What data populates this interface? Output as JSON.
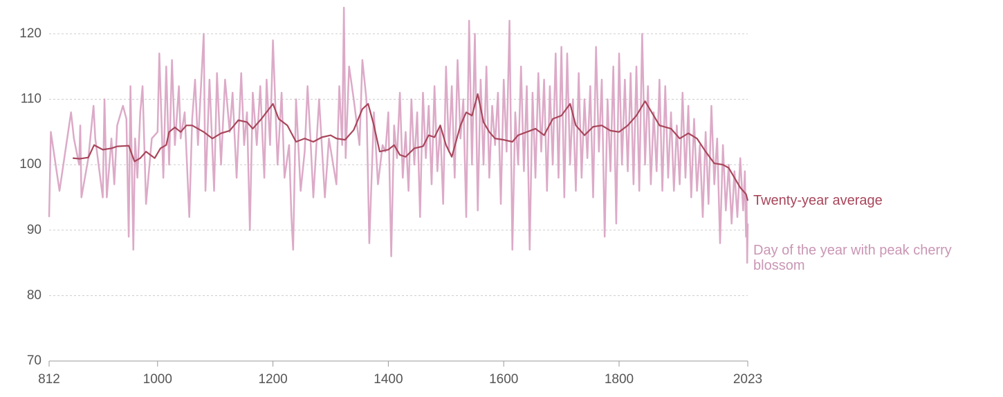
{
  "chart_data": {
    "type": "line",
    "xlim": [
      812,
      2023
    ],
    "xticks": [
      812,
      1000,
      1200,
      1400,
      1600,
      1800,
      2023
    ],
    "ylim": [
      70,
      124
    ],
    "yticks": [
      70,
      80,
      90,
      100,
      110,
      120
    ],
    "grid": true,
    "series": [
      {
        "name": "Day of the year with peak cherry blossom",
        "color": "#dcaac7",
        "x": [
          812,
          815,
          830,
          850,
          855,
          864,
          866,
          868,
          880,
          889,
          892,
          905,
          908,
          912,
          920,
          925,
          930,
          940,
          946,
          950,
          953,
          958,
          961,
          965,
          970,
          974,
          980,
          990,
          1000,
          1003,
          1010,
          1015,
          1020,
          1025,
          1030,
          1037,
          1040,
          1047,
          1055,
          1060,
          1065,
          1070,
          1080,
          1083,
          1090,
          1098,
          1103,
          1110,
          1117,
          1125,
          1130,
          1137,
          1145,
          1150,
          1155,
          1160,
          1165,
          1172,
          1178,
          1185,
          1189,
          1195,
          1200,
          1208,
          1215,
          1220,
          1228,
          1232,
          1235,
          1240,
          1248,
          1255,
          1260,
          1265,
          1270,
          1280,
          1290,
          1297,
          1310,
          1315,
          1320,
          1323,
          1326,
          1332,
          1340,
          1350,
          1355,
          1362,
          1367,
          1375,
          1382,
          1390,
          1395,
          1400,
          1405,
          1410,
          1415,
          1420,
          1425,
          1430,
          1435,
          1440,
          1445,
          1450,
          1455,
          1460,
          1465,
          1470,
          1475,
          1480,
          1485,
          1490,
          1495,
          1500,
          1505,
          1510,
          1515,
          1520,
          1525,
          1530,
          1535,
          1540,
          1545,
          1550,
          1555,
          1560,
          1565,
          1570,
          1575,
          1580,
          1585,
          1590,
          1595,
          1600,
          1605,
          1610,
          1615,
          1620,
          1625,
          1630,
          1635,
          1640,
          1645,
          1650,
          1655,
          1660,
          1665,
          1670,
          1675,
          1680,
          1685,
          1690,
          1695,
          1700,
          1705,
          1710,
          1715,
          1720,
          1725,
          1730,
          1735,
          1740,
          1745,
          1750,
          1755,
          1760,
          1765,
          1770,
          1775,
          1780,
          1785,
          1790,
          1795,
          1800,
          1805,
          1810,
          1815,
          1820,
          1825,
          1830,
          1835,
          1840,
          1845,
          1850,
          1855,
          1860,
          1865,
          1870,
          1875,
          1880,
          1885,
          1890,
          1895,
          1900,
          1905,
          1910,
          1915,
          1920,
          1925,
          1930,
          1935,
          1940,
          1945,
          1950,
          1955,
          1960,
          1965,
          1970,
          1975,
          1980,
          1985,
          1990,
          1995,
          2000,
          2005,
          2010,
          2015,
          2018,
          2020,
          2021,
          2022,
          2023
        ],
        "values": [
          92,
          105,
          96,
          108,
          104,
          100,
          106,
          95,
          101,
          109,
          104,
          95,
          110,
          95,
          104,
          97,
          106,
          109,
          107,
          89,
          112,
          87,
          104,
          98,
          108,
          112,
          94,
          104,
          105,
          117,
          98,
          115,
          100,
          116,
          103,
          112,
          104,
          108,
          92,
          107,
          113,
          103,
          120,
          96,
          113,
          96,
          114,
          100,
          113,
          105,
          111,
          98,
          114,
          103,
          108,
          90,
          111,
          103,
          112,
          98,
          113,
          103,
          119,
          100,
          111,
          98,
          103,
          92,
          87,
          110,
          96,
          102,
          112,
          104,
          95,
          110,
          95,
          104,
          97,
          112,
          103,
          124,
          101,
          115,
          110,
          103,
          116,
          110,
          88,
          108,
          97,
          103,
          102,
          108,
          86,
          106,
          101,
          111,
          98,
          105,
          96,
          110,
          100,
          108,
          92,
          111,
          101,
          109,
          97,
          112,
          99,
          106,
          94,
          115,
          102,
          112,
          98,
          116,
          104,
          110,
          92,
          122,
          100,
          120,
          93,
          113,
          100,
          115,
          98,
          109,
          103,
          111,
          94,
          113,
          102,
          122,
          87,
          108,
          100,
          115,
          99,
          112,
          87,
          111,
          98,
          114,
          102,
          113,
          96,
          112,
          100,
          117,
          98,
          118,
          95,
          117,
          100,
          110,
          96,
          114,
          98,
          110,
          101,
          112,
          95,
          118,
          102,
          113,
          89,
          110,
          99,
          115,
          91,
          117,
          100,
          113,
          99,
          114,
          97,
          115,
          96,
          120,
          100,
          112,
          97,
          108,
          99,
          113,
          96,
          112,
          98,
          108,
          96,
          106,
          97,
          111,
          98,
          109,
          95,
          107,
          96,
          103,
          92,
          105,
          94,
          109,
          97,
          104,
          88,
          103,
          93,
          100,
          91,
          99,
          92,
          101,
          93,
          99,
          89,
          95,
          85,
          91
        ]
      },
      {
        "name": "Twenty-year average",
        "color": "#a8455a",
        "x": [
          853,
          865,
          880,
          890,
          905,
          920,
          930,
          950,
          960,
          970,
          980,
          995,
          1005,
          1015,
          1020,
          1030,
          1040,
          1050,
          1060,
          1070,
          1080,
          1095,
          1110,
          1125,
          1140,
          1155,
          1165,
          1180,
          1200,
          1210,
          1225,
          1240,
          1255,
          1270,
          1285,
          1300,
          1310,
          1325,
          1340,
          1355,
          1365,
          1375,
          1385,
          1400,
          1410,
          1420,
          1430,
          1445,
          1460,
          1470,
          1480,
          1490,
          1500,
          1510,
          1525,
          1535,
          1545,
          1555,
          1565,
          1575,
          1585,
          1600,
          1615,
          1625,
          1640,
          1655,
          1670,
          1685,
          1700,
          1715,
          1725,
          1740,
          1755,
          1770,
          1785,
          1800,
          1815,
          1830,
          1845,
          1860,
          1870,
          1890,
          1905,
          1920,
          1935,
          1950,
          1965,
          1980,
          1990,
          2000,
          2010,
          2020,
          2023
        ],
        "values": [
          101,
          100.9,
          101.1,
          103,
          102.3,
          102.5,
          102.8,
          102.9,
          100.5,
          101,
          102,
          101,
          102.5,
          103,
          105,
          105.7,
          105,
          106,
          106,
          105.5,
          105,
          104,
          104.8,
          105.2,
          106.8,
          106.5,
          105.5,
          107,
          109.3,
          107,
          106,
          103.5,
          104,
          103.5,
          104.2,
          104.5,
          104,
          103.8,
          105.3,
          108.5,
          109.3,
          106,
          102,
          102.3,
          103,
          101.5,
          101.2,
          102.5,
          102.8,
          104.5,
          104.2,
          106,
          103,
          101.2,
          106,
          108,
          107.5,
          110.8,
          106.5,
          105,
          104,
          103.8,
          103.5,
          104.5,
          105,
          105.5,
          104.5,
          107,
          107.5,
          109.3,
          106,
          104.5,
          105.8,
          106,
          105.2,
          105,
          106,
          107.5,
          109.7,
          107.5,
          106,
          105.5,
          104,
          104.8,
          104,
          102,
          100.2,
          100,
          99.5,
          98,
          96.5,
          95.5,
          94.5
        ]
      }
    ]
  }
}
